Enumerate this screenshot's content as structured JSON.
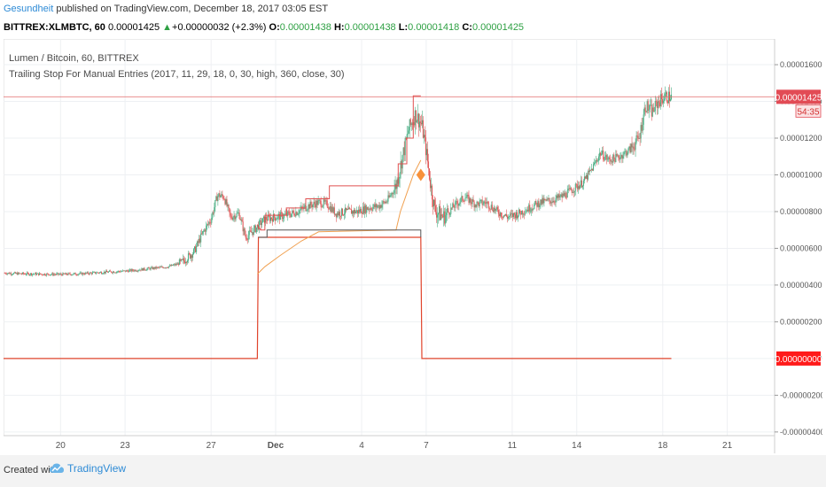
{
  "header": {
    "author": "Gesundheit",
    "published": "published on TradingView.com, December 18, 2017 03:05 EST"
  },
  "ticker": {
    "symbol": "BITTREX:XLMBTC, 60",
    "price": "0.00001425",
    "change": "+0.00000032 (+2.3%)",
    "o_label": "O:",
    "o_value": "0.00001438",
    "h_label": "H:",
    "h_value": "0.00001438",
    "l_label": "L:",
    "l_value": "0.00001418",
    "c_label": "C:",
    "c_value": "0.00001425"
  },
  "legend": {
    "line1": "Lumen / Bitcoin, 60, BITTREX",
    "line2": "Trailing Stop For Manual Entries (2017, 11, 29, 18, 0, 30, high, 360, close, 30)"
  },
  "footer": {
    "created": "Created with",
    "brand": "TradingView"
  },
  "colors": {
    "price_line": "#e06060",
    "stop_line": "#e0442c",
    "trail_orange": "#f0a050",
    "marker": "#f7913a",
    "up_candle": "#4caf85",
    "down_candle": "#e05a5a"
  },
  "chart_data": {
    "type": "candlestick",
    "y_ticks": [
      "0.00001600",
      "0.00001400",
      "0.00001200",
      "0.00001000",
      "0.00000800",
      "0.00000600",
      "0.00000400",
      "0.00000200",
      "0.00000000",
      "-0.00000200",
      "-0.00000400"
    ],
    "y_tick_values": [
      1600,
      1400,
      1200,
      1000,
      800,
      600,
      400,
      200,
      0,
      -200,
      -400
    ],
    "y_scale_unit": "1e-8",
    "ylim": [
      -420,
      1740
    ],
    "x_ticks": [
      "20",
      "23",
      "27",
      "Dec",
      "4",
      "7",
      "11",
      "14",
      "18",
      "21"
    ],
    "x_tick_days": [
      20,
      23,
      27,
      30,
      34,
      37,
      41,
      44,
      48,
      51
    ],
    "xlim": [
      17.35,
      53.2
    ],
    "last_price_label": "0.00001425",
    "countdown_label": "54:35",
    "last_price": 1425,
    "stop_label": "0.00000000",
    "stop_value": 0,
    "price_path": [
      [
        17.35,
        466
      ],
      [
        18,
        462
      ],
      [
        19,
        460
      ],
      [
        20,
        458
      ],
      [
        21,
        462
      ],
      [
        22,
        470
      ],
      [
        23,
        476
      ],
      [
        24,
        488
      ],
      [
        25,
        500
      ],
      [
        25.6,
        520
      ],
      [
        26.2,
        580
      ],
      [
        26.6,
        680
      ],
      [
        27,
        760
      ],
      [
        27.3,
        890
      ],
      [
        27.6,
        880
      ],
      [
        27.9,
        770
      ],
      [
        28.3,
        790
      ],
      [
        28.6,
        660
      ],
      [
        29,
        700
      ],
      [
        29.5,
        760
      ],
      [
        30,
        770
      ],
      [
        30.5,
        780
      ],
      [
        31,
        800
      ],
      [
        31.5,
        830
      ],
      [
        32,
        850
      ],
      [
        32.4,
        840
      ],
      [
        32.8,
        790
      ],
      [
        33.3,
        800
      ],
      [
        33.8,
        800
      ],
      [
        34.3,
        820
      ],
      [
        34.8,
        830
      ],
      [
        35.2,
        860
      ],
      [
        35.6,
        940
      ],
      [
        35.9,
        1100
      ],
      [
        36.2,
        1250
      ],
      [
        36.5,
        1330
      ],
      [
        36.8,
        1270
      ],
      [
        37.0,
        1130
      ],
      [
        37.2,
        950
      ],
      [
        37.4,
        810
      ],
      [
        37.8,
        770
      ],
      [
        38.3,
        830
      ],
      [
        38.8,
        880
      ],
      [
        39.3,
        840
      ],
      [
        39.8,
        850
      ],
      [
        40.3,
        800
      ],
      [
        40.8,
        770
      ],
      [
        41.3,
        790
      ],
      [
        41.8,
        820
      ],
      [
        42.3,
        850
      ],
      [
        42.8,
        860
      ],
      [
        43.3,
        880
      ],
      [
        43.8,
        920
      ],
      [
        44.3,
        960
      ],
      [
        44.7,
        1030
      ],
      [
        45.1,
        1120
      ],
      [
        45.5,
        1080
      ],
      [
        46,
        1100
      ],
      [
        46.5,
        1140
      ],
      [
        46.9,
        1200
      ],
      [
        47.2,
        1380
      ],
      [
        47.5,
        1340
      ],
      [
        47.8,
        1400
      ],
      [
        48.1,
        1425
      ],
      [
        48.4,
        1425
      ]
    ],
    "candle_spread": [
      [
        17.35,
        25.5,
        14
      ],
      [
        25.5,
        35.5,
        45
      ],
      [
        35.5,
        38,
        90
      ],
      [
        38,
        46.5,
        45
      ],
      [
        46.5,
        48.4,
        70
      ]
    ],
    "stop_line_path": [
      [
        17.35,
        0
      ],
      [
        29.15,
        0
      ],
      [
        29.2,
        660
      ],
      [
        36.75,
        660
      ],
      [
        36.8,
        0
      ],
      [
        48.4,
        0
      ]
    ],
    "upper_trail_path": [
      [
        29.15,
        730
      ],
      [
        29.3,
        700
      ],
      [
        29.5,
        700
      ],
      [
        29.5,
        780
      ],
      [
        30.5,
        780
      ],
      [
        30.5,
        820
      ],
      [
        31.4,
        820
      ],
      [
        31.4,
        870
      ],
      [
        32.5,
        870
      ],
      [
        32.5,
        940
      ],
      [
        35.7,
        940
      ],
      [
        35.7,
        1060
      ],
      [
        36.1,
        1060
      ],
      [
        36.1,
        1200
      ],
      [
        36.4,
        1200
      ],
      [
        36.4,
        1430
      ],
      [
        36.75,
        1430
      ]
    ],
    "lower_trail_path": [
      [
        29.15,
        460
      ],
      [
        29.5,
        500
      ],
      [
        30.2,
        560
      ],
      [
        31.2,
        640
      ],
      [
        32,
        690
      ],
      [
        35.6,
        700
      ],
      [
        35.8,
        800
      ],
      [
        36.1,
        900
      ],
      [
        36.4,
        1000
      ],
      [
        36.75,
        1080
      ]
    ],
    "dark_entry_path": [
      [
        29.2,
        660
      ],
      [
        29.6,
        660
      ],
      [
        29.6,
        700
      ],
      [
        36.75,
        700
      ],
      [
        36.75,
        660
      ]
    ],
    "marker_point": [
      36.75,
      1000
    ]
  }
}
